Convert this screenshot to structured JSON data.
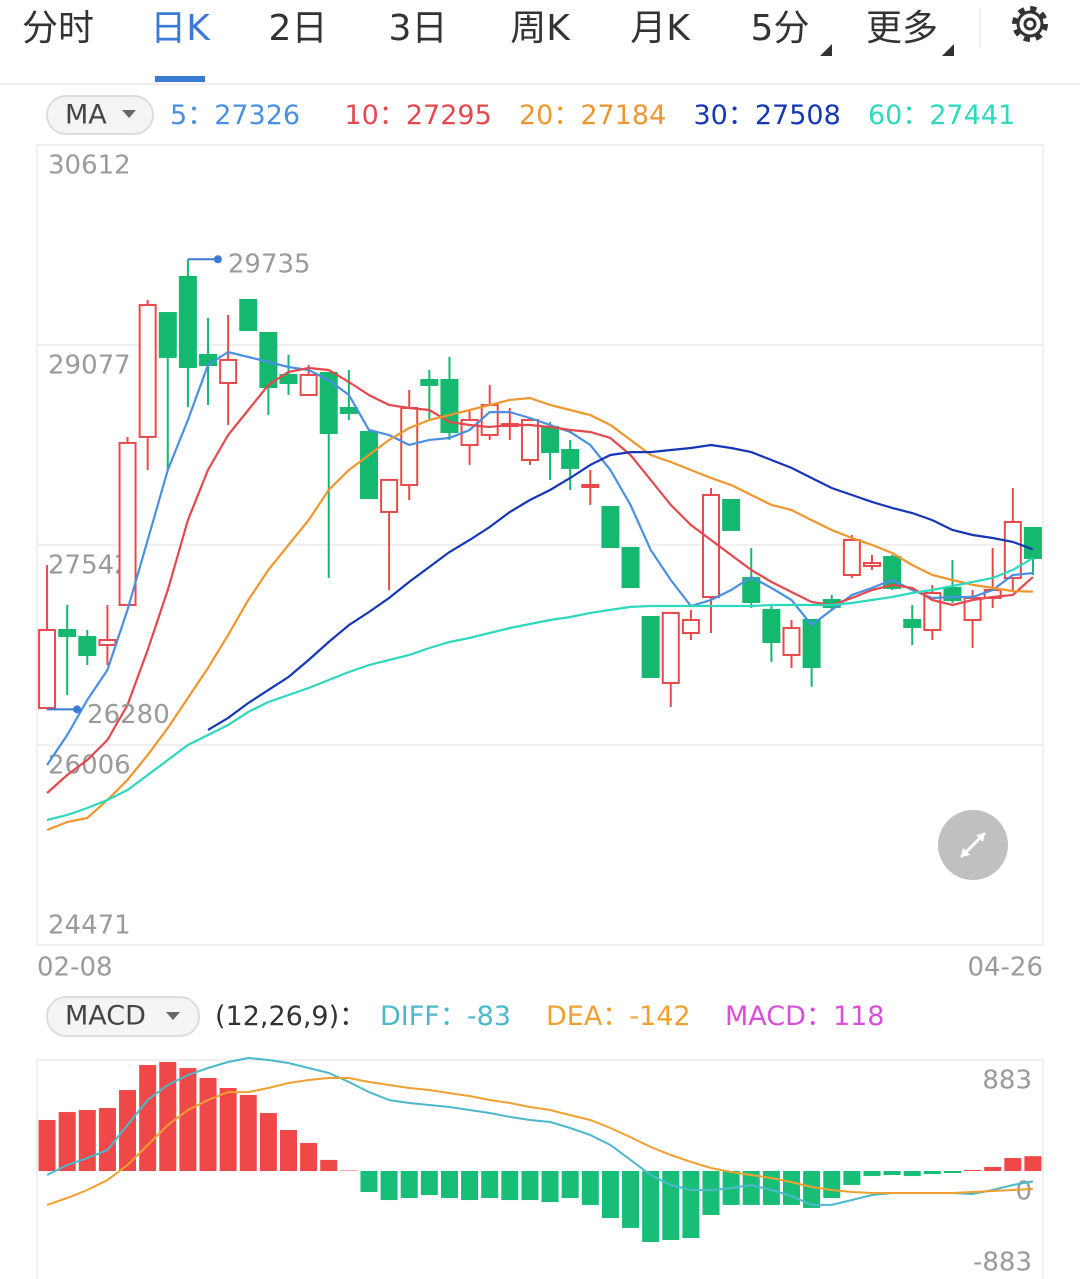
{
  "tabs": [
    "分时",
    "日K",
    "2日",
    "3日",
    "周K",
    "月K",
    "5分",
    "更多"
  ],
  "chart_data": [
    {
      "type": "candlestick",
      "indicator": "MA",
      "separator": "：",
      "categories": [
        "02-08",
        null,
        null,
        null,
        null,
        null,
        null,
        null,
        null,
        null,
        null,
        null,
        null,
        null,
        null,
        null,
        null,
        null,
        null,
        null,
        null,
        null,
        null,
        null,
        null,
        null,
        null,
        null,
        null,
        null,
        null,
        null,
        null,
        null,
        null,
        null,
        null,
        null,
        null,
        null,
        null,
        null,
        null,
        null,
        null,
        null,
        null,
        null,
        null,
        "04-26"
      ],
      "up_color": "#e84a4a",
      "down_color": "#14b86f",
      "open": [
        26290,
        26889,
        26835,
        26774,
        27081,
        28371,
        29322,
        29599,
        29000,
        28785,
        29422,
        29169,
        28847,
        28693,
        28862,
        28593,
        28409,
        27795,
        28002,
        28808,
        28808,
        28309,
        28386,
        28455,
        28194,
        28447,
        28271,
        27995,
        27833,
        27519,
        26989,
        26482,
        26866,
        27142,
        27887,
        27288,
        27043,
        26697,
        26966,
        27119,
        27311,
        27380,
        27449,
        26966,
        26889,
        27212,
        26966,
        27135,
        27288,
        27672
      ],
      "high": [
        27388,
        27081,
        26889,
        27081,
        28371,
        29422,
        29322,
        29735,
        29284,
        29307,
        29422,
        29169,
        29000,
        28923,
        28862,
        28885,
        28409,
        28041,
        28731,
        28885,
        28985,
        28578,
        28770,
        28593,
        28516,
        28486,
        28348,
        28117,
        27833,
        27519,
        26989,
        27020,
        27043,
        27979,
        27887,
        27519,
        27081,
        26966,
        26966,
        27158,
        27618,
        27465,
        27465,
        27081,
        27235,
        27426,
        27196,
        27519,
        27979,
        27672
      ],
      "low": [
        26280,
        26390,
        26620,
        26620,
        27081,
        28117,
        28117,
        28601,
        28616,
        28463,
        29192,
        28539,
        28693,
        28693,
        27288,
        28501,
        27902,
        27196,
        27887,
        28501,
        28348,
        28156,
        28348,
        28348,
        28156,
        28041,
        27964,
        27849,
        27526,
        27219,
        26528,
        26298,
        26812,
        26866,
        27657,
        27058,
        26644,
        26597,
        26452,
        27043,
        27288,
        27350,
        27196,
        26774,
        26812,
        27096,
        26751,
        27058,
        27196,
        27311
      ],
      "close": [
        26889,
        26843,
        26697,
        26812,
        28325,
        29384,
        28985,
        28908,
        28923,
        28962,
        29192,
        28754,
        28785,
        28847,
        28401,
        28555,
        27902,
        28041,
        28593,
        28770,
        28409,
        28501,
        28616,
        28470,
        28501,
        28255,
        28133,
        28002,
        27526,
        27219,
        26528,
        27020,
        26966,
        27925,
        27657,
        27104,
        26797,
        26904,
        26605,
        27066,
        27580,
        27403,
        27212,
        26912,
        27173,
        27119,
        27135,
        27196,
        27718,
        27442
      ],
      "series": [
        {
          "name": "5",
          "color": "#4a90e2",
          "values": [
            25853,
            26083,
            26352,
            26582,
            27043,
            27580,
            28117,
            28501,
            28923,
            29023,
            28985,
            28946,
            28908,
            28885,
            28808,
            28693,
            28424,
            28386,
            28309,
            28348,
            28363,
            28424,
            28562,
            28562,
            28516,
            28463,
            28409,
            28309,
            28117,
            27849,
            27503,
            27273,
            27073,
            27119,
            27196,
            27296,
            27212,
            27119,
            26927,
            27043,
            27158,
            27212,
            27273,
            27196,
            27135,
            27142,
            27142,
            27196,
            27311,
            27326
          ]
        },
        {
          "name": "10",
          "color": "#e5484d",
          "values": [
            25638,
            25776,
            25891,
            26045,
            26313,
            26736,
            27196,
            27733,
            28117,
            28386,
            28578,
            28770,
            28870,
            28900,
            28885,
            28793,
            28693,
            28616,
            28593,
            28578,
            28486,
            28463,
            28447,
            28463,
            28463,
            28447,
            28424,
            28409,
            28363,
            28232,
            28041,
            27849,
            27695,
            27580,
            27465,
            27350,
            27258,
            27181,
            27104,
            27081,
            27135,
            27196,
            27235,
            27212,
            27119,
            27081,
            27119,
            27142,
            27158,
            27295
          ]
        },
        {
          "name": "20",
          "color": "#f0962e",
          "values": [
            25354,
            25415,
            25446,
            25584,
            25738,
            25930,
            26137,
            26367,
            26597,
            26851,
            27119,
            27350,
            27542,
            27733,
            27964,
            28117,
            28232,
            28348,
            28440,
            28501,
            28539,
            28578,
            28616,
            28655,
            28670,
            28616,
            28578,
            28539,
            28463,
            28348,
            28232,
            28179,
            28117,
            28056,
            28002,
            27925,
            27849,
            27810,
            27733,
            27657,
            27595,
            27542,
            27480,
            27388,
            27311,
            27273,
            27235,
            27212,
            27188,
            27184
          ]
        },
        {
          "name": "30",
          "color": "#1537b5",
          "values": [
            null,
            null,
            null,
            null,
            null,
            null,
            null,
            null,
            26122,
            26214,
            26329,
            26429,
            26528,
            26659,
            26797,
            26927,
            27027,
            27135,
            27258,
            27373,
            27488,
            27580,
            27680,
            27795,
            27887,
            27964,
            28056,
            28156,
            28232,
            28255,
            28255,
            28271,
            28286,
            28309,
            28286,
            28255,
            28194,
            28133,
            28056,
            27979,
            27925,
            27872,
            27826,
            27787,
            27733,
            27657,
            27618,
            27595,
            27565,
            27508
          ]
        },
        {
          "name": "60",
          "color": "#2dd8bd",
          "values": [
            25431,
            25469,
            25523,
            25584,
            25661,
            25776,
            25891,
            26006,
            26083,
            26160,
            26260,
            26336,
            26390,
            26444,
            26505,
            26567,
            26620,
            26659,
            26697,
            26751,
            26797,
            26828,
            26866,
            26904,
            26935,
            26966,
            26989,
            27020,
            27043,
            27066,
            27073,
            27073,
            27073,
            27073,
            27073,
            27073,
            27081,
            27081,
            27081,
            27081,
            27096,
            27119,
            27142,
            27173,
            27196,
            27227,
            27258,
            27288,
            27350,
            27441
          ]
        }
      ],
      "ylim": [
        24471,
        30612
      ],
      "yticks": [
        24471,
        26006,
        27542,
        29077,
        30612
      ],
      "grid": true
    },
    {
      "type": "macd",
      "indicator": "MACD",
      "params": "(12,26,9)",
      "separator": "：",
      "series": [
        {
          "name": "DIFF",
          "type": "line",
          "color": "#4bb8cc",
          "values": [
            -32,
            48,
            103,
            167,
            366,
            565,
            684,
            764,
            819,
            867,
            899,
            883,
            859,
            819,
            780,
            708,
            628,
            565,
            541,
            525,
            509,
            485,
            461,
            430,
            406,
            390,
            342,
            286,
            207,
            88,
            -32,
            -111,
            -151,
            -151,
            -135,
            -111,
            -151,
            -199,
            -270,
            -270,
            -231,
            -191,
            -175,
            -175,
            -175,
            -175,
            -183,
            -151,
            -111,
            -83
          ]
        },
        {
          "name": "DEA",
          "type": "line",
          "color": "#f0a030",
          "values": [
            -270,
            -215,
            -151,
            -72,
            48,
            207,
            366,
            485,
            565,
            628,
            628,
            660,
            700,
            724,
            740,
            740,
            708,
            684,
            660,
            644,
            620,
            597,
            565,
            541,
            509,
            485,
            445,
            406,
            342,
            270,
            191,
            127,
            72,
            24,
            -8,
            -32,
            -56,
            -88,
            -127,
            -151,
            -167,
            -175,
            -175,
            -175,
            -175,
            -175,
            -167,
            -159,
            -151,
            -142
          ]
        },
        {
          "name": "MACD",
          "type": "bar",
          "color": "#d94fd9",
          "up_color": "#f04848",
          "down_color": "#18be78",
          "values": [
            406,
            469,
            485,
            501,
            644,
            843,
            867,
            819,
            740,
            660,
            605,
            461,
            326,
            223,
            88,
            4,
            -167,
            -231,
            -215,
            -191,
            -215,
            -231,
            -215,
            -231,
            -231,
            -247,
            -215,
            -270,
            -374,
            -453,
            -565,
            -549,
            -533,
            -350,
            -270,
            -270,
            -270,
            -270,
            -294,
            -215,
            -111,
            -40,
            -32,
            -40,
            -24,
            -16,
            8,
            32,
            103,
            118
          ]
        }
      ],
      "ylim": [
        -883,
        883
      ],
      "yticks": [
        -883,
        0,
        883
      ],
      "grid": false
    }
  ]
}
